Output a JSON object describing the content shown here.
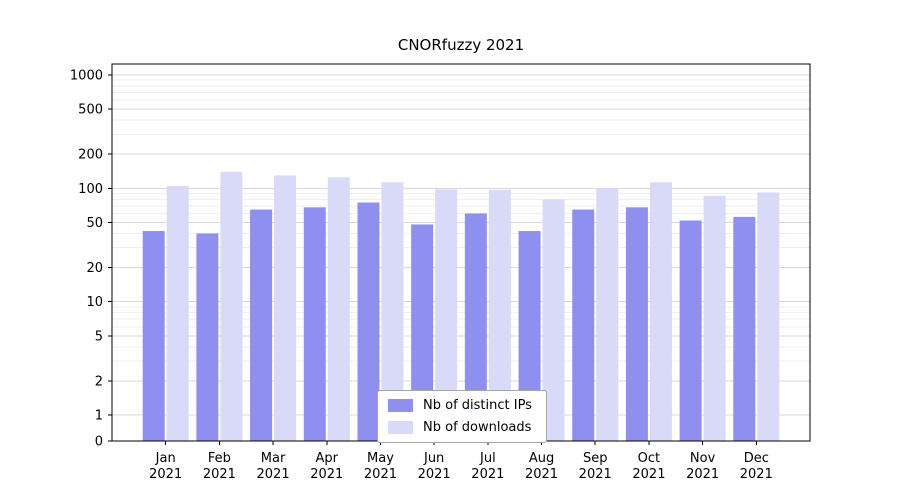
{
  "chart_data": {
    "type": "bar",
    "title": "CNORfuzzy 2021",
    "year_label": "2021",
    "categories": [
      "Jan",
      "Feb",
      "Mar",
      "Apr",
      "May",
      "Jun",
      "Jul",
      "Aug",
      "Sep",
      "Oct",
      "Nov",
      "Dec"
    ],
    "series": [
      {
        "name": "Nb of distinct IPs",
        "color": "#8f8fef",
        "values": [
          42,
          40,
          65,
          68,
          75,
          48,
          60,
          42,
          65,
          68,
          52,
          56
        ]
      },
      {
        "name": "Nb of downloads",
        "color": "#d9d9f8",
        "values": [
          105,
          140,
          130,
          125,
          113,
          98,
          97,
          80,
          100,
          113,
          86,
          92
        ]
      }
    ],
    "yscale": "symlog",
    "yticks": [
      0,
      1,
      2,
      5,
      10,
      20,
      50,
      100,
      200,
      500,
      1000
    ],
    "ylim": [
      0,
      1000
    ],
    "grid": true,
    "legend_position": "lower center"
  },
  "colors": {
    "background": "#ffffff",
    "grid_major": "#d9d9d9",
    "grid_minor": "#efefef",
    "axis": "#000000",
    "text": "#000000",
    "legend_border": "#a6a6a6"
  }
}
